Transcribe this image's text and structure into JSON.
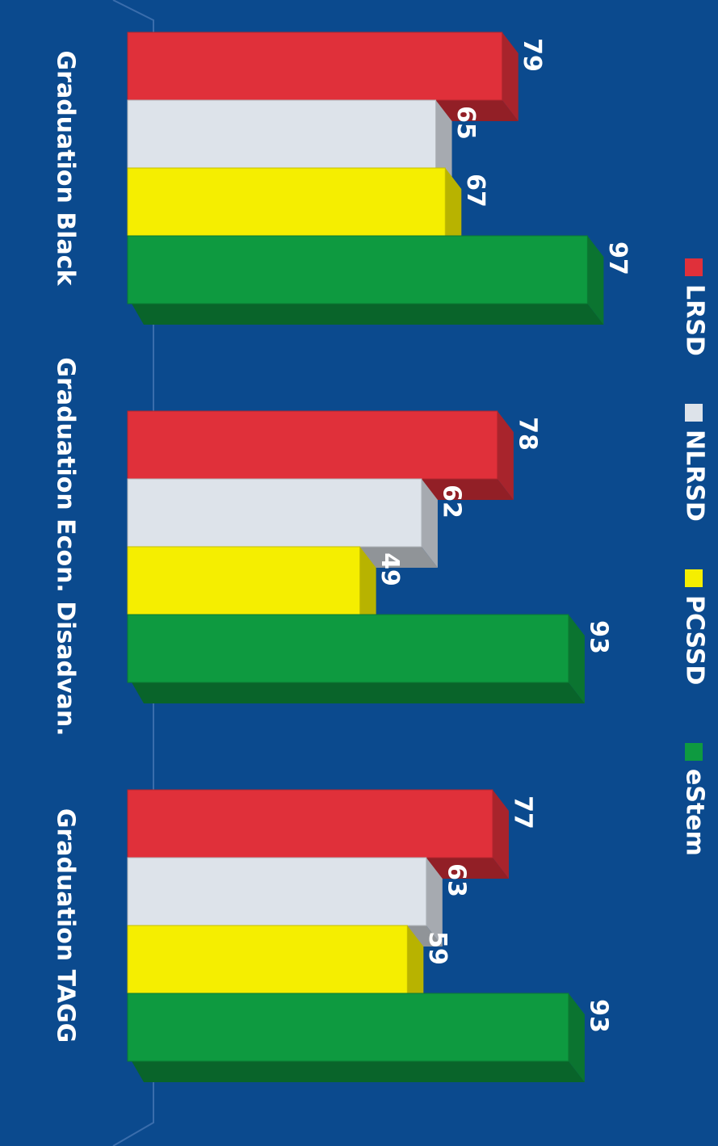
{
  "chart_data": {
    "type": "bar",
    "categories": [
      "Graduation Black",
      "Graduation Econ. Disadvan.",
      "Graduation TAGG"
    ],
    "series": [
      {
        "name": "LRSD",
        "color": "#e0303a",
        "values": [
          79,
          78,
          77
        ]
      },
      {
        "name": "NLRSD",
        "color": "#dde3ea",
        "values": [
          65,
          62,
          63
        ]
      },
      {
        "name": "PCSSD",
        "color": "#f5ee00",
        "values": [
          67,
          49,
          59
        ]
      },
      {
        "name": "eStem",
        "color": "#0e9a40",
        "values": [
          97,
          93,
          93
        ]
      }
    ]
  }
}
